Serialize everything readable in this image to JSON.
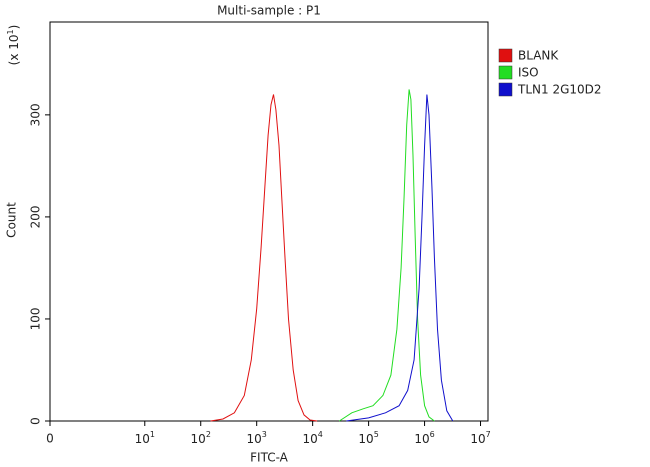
{
  "chart_data": {
    "type": "line",
    "title": "Multi-sample : P1",
    "xlabel": "FITC-A",
    "ylabel": "Count",
    "y_multiplier": {
      "prefix": "(x 10",
      "exponent": "1",
      "suffix": ")"
    },
    "xscale": "biexponential",
    "xlim": [
      0,
      13600000
    ],
    "ylim": [
      0,
      391
    ],
    "xticks": [
      0,
      {
        "value": 10,
        "label": "10",
        "exponent": "1"
      },
      {
        "value": 100,
        "label": "10",
        "exponent": "2"
      },
      {
        "value": 1000,
        "label": "10",
        "exponent": "3"
      },
      {
        "value": 10000,
        "label": "10",
        "exponent": "4"
      },
      {
        "value": 100000,
        "label": "10",
        "exponent": "5"
      },
      {
        "value": 1000000,
        "label": "10",
        "exponent": "6"
      },
      {
        "value": 10000000,
        "label": "10",
        "exponent": "7"
      }
    ],
    "yticks": [
      0,
      100,
      200,
      300
    ],
    "legend": "right",
    "series": [
      {
        "name": "BLANK",
        "color": "#e01010",
        "x": [
          150,
          250,
          400,
          600,
          800,
          1000,
          1200,
          1400,
          1600,
          1800,
          2000,
          2200,
          2500,
          2800,
          3200,
          3700,
          4500,
          5500,
          7000,
          9000,
          12000
        ],
        "values": [
          0,
          2,
          8,
          25,
          60,
          110,
          170,
          230,
          280,
          310,
          320,
          305,
          270,
          220,
          160,
          100,
          50,
          20,
          6,
          1,
          0
        ]
      },
      {
        "name": "ISO",
        "color": "#22dd22",
        "x": [
          30000,
          50000,
          80000,
          120000,
          180000,
          250000,
          320000,
          380000,
          430000,
          480000,
          530000,
          570000,
          620000,
          680000,
          750000,
          850000,
          1000000,
          1200000,
          1500000
        ],
        "values": [
          0,
          8,
          12,
          15,
          25,
          45,
          90,
          150,
          220,
          290,
          325,
          315,
          260,
          180,
          100,
          45,
          15,
          4,
          0
        ]
      },
      {
        "name": "TLN1 2G10D2",
        "color": "#1010cc",
        "x": [
          40000,
          100000,
          200000,
          350000,
          500000,
          650000,
          800000,
          900000,
          1000000,
          1100000,
          1200000,
          1350000,
          1500000,
          1700000,
          2000000,
          2500000,
          3200000
        ],
        "values": [
          0,
          3,
          8,
          15,
          30,
          60,
          130,
          200,
          270,
          320,
          300,
          230,
          160,
          90,
          40,
          10,
          0
        ]
      }
    ]
  }
}
